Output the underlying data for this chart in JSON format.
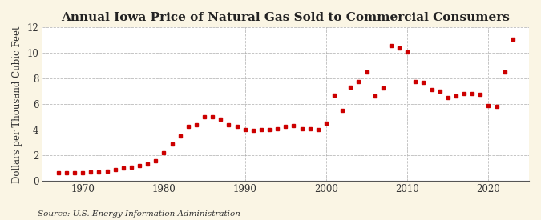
{
  "years": [
    1967,
    1968,
    1969,
    1970,
    1971,
    1972,
    1973,
    1974,
    1975,
    1976,
    1977,
    1978,
    1979,
    1980,
    1981,
    1982,
    1983,
    1984,
    1985,
    1986,
    1987,
    1988,
    1989,
    1990,
    1991,
    1992,
    1993,
    1994,
    1995,
    1996,
    1997,
    1998,
    1999,
    2000,
    2001,
    2002,
    2003,
    2004,
    2005,
    2006,
    2007,
    2008,
    2009,
    2010,
    2011,
    2012,
    2013,
    2014,
    2015,
    2016,
    2017,
    2018,
    2019,
    2020,
    2021,
    2022,
    2023
  ],
  "values": [
    0.62,
    0.64,
    0.65,
    0.67,
    0.7,
    0.73,
    0.79,
    0.9,
    1.0,
    1.1,
    1.22,
    1.35,
    1.6,
    2.2,
    2.9,
    3.55,
    4.3,
    4.4,
    5.0,
    5.05,
    4.85,
    4.4,
    4.3,
    4.0,
    3.95,
    4.0,
    4.0,
    4.1,
    4.25,
    4.35,
    4.1,
    4.1,
    4.05,
    4.55,
    6.7,
    5.55,
    7.35,
    7.75,
    8.5,
    6.65,
    7.3,
    10.6,
    10.4,
    10.1,
    7.8,
    7.7,
    7.15,
    7.05,
    6.5,
    6.65,
    6.85,
    6.85,
    6.8,
    5.9,
    5.85,
    8.5,
    11.1
  ],
  "title": "Annual Iowa Price of Natural Gas Sold to Commercial Consumers",
  "ylabel": "Dollars per Thousand Cubic Feet",
  "source": "Source: U.S. Energy Information Administration",
  "xlim": [
    1965,
    2025
  ],
  "ylim": [
    0,
    12
  ],
  "yticks": [
    0,
    2,
    4,
    6,
    8,
    10,
    12
  ],
  "xticks": [
    1970,
    1980,
    1990,
    2000,
    2010,
    2020
  ],
  "bg_color": "#faf5e4",
  "plot_bg_color": "#ffffff",
  "marker_color": "#cc0000",
  "grid_color": "#aaaaaa",
  "title_fontsize": 11,
  "label_fontsize": 8.5,
  "source_fontsize": 7.5
}
